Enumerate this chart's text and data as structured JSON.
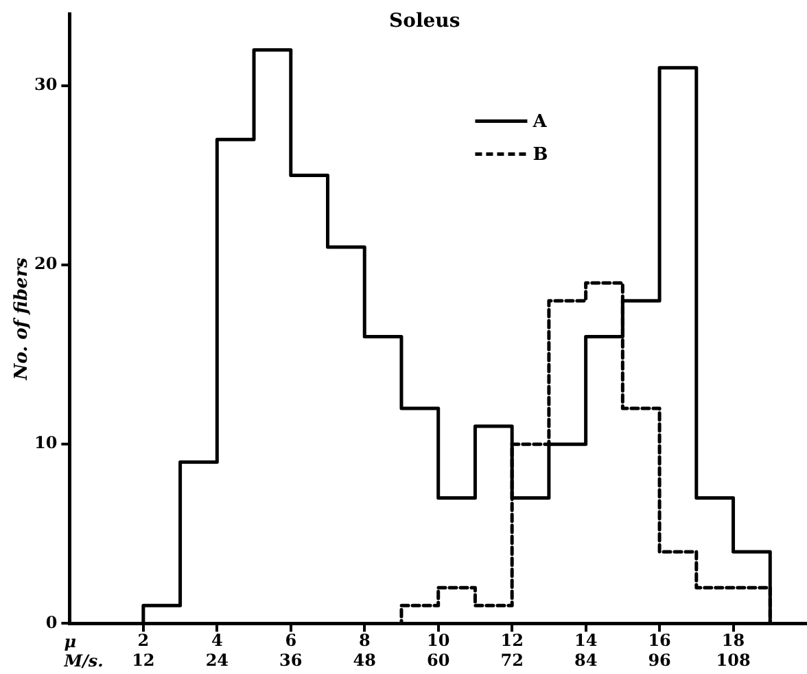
{
  "chart_data": {
    "type": "step",
    "title": "Soleus",
    "xlabel": "μ",
    "x2label": "M/s.",
    "ylabel": "No. of fibers",
    "series": [
      {
        "name": "A",
        "color": "#000000",
        "line_style": "solid",
        "x": [
          1,
          2,
          3,
          4,
          5,
          6,
          7,
          8,
          9,
          10,
          11,
          12,
          13,
          14,
          15,
          16,
          17,
          18,
          19
        ],
        "values": [
          0,
          1,
          9,
          27,
          32,
          25,
          21,
          16,
          12,
          7,
          11,
          7,
          10,
          16,
          18,
          31,
          7,
          4,
          0
        ]
      },
      {
        "name": "B",
        "color": "#000000",
        "line_style": "dashed",
        "x": [
          8,
          9,
          10,
          11,
          12,
          13,
          14,
          15,
          16,
          17,
          18,
          19
        ],
        "values": [
          0,
          1,
          2,
          1,
          10,
          18,
          19,
          12,
          4,
          2,
          2,
          0
        ]
      }
    ],
    "xlim": [
      0,
      20
    ],
    "xticks": [
      2,
      4,
      6,
      8,
      10,
      12,
      14,
      16,
      18
    ],
    "x2lim": [
      0,
      120
    ],
    "x2ticks": [
      12,
      24,
      36,
      48,
      60,
      72,
      84,
      96,
      108
    ],
    "ylim": [
      0,
      34
    ],
    "yticks": [
      0,
      10,
      20,
      30
    ],
    "grid": false,
    "legend": "top right"
  }
}
